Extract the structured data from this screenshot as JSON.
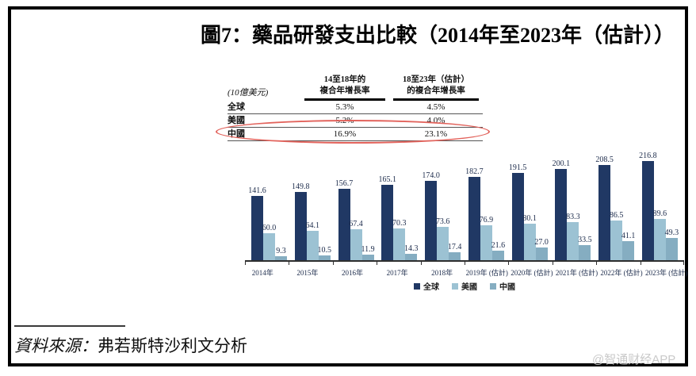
{
  "title": "圖7：藥品研發支出比較（2014年至2023年（估計））",
  "table": {
    "unit_label": "(10億美元)",
    "header_col2_line1": "14至18年的",
    "header_col2_line2": "複合年增長率",
    "header_col3_line1": "18至23年（估計）",
    "header_col3_line2": "的複合年增長率",
    "rows": [
      {
        "label": "全球",
        "v1": "5.3%",
        "v2": "4.5%"
      },
      {
        "label": "美國",
        "v1": "5.2%",
        "v2": "4.0%"
      },
      {
        "label": "中國",
        "v1": "16.9%",
        "v2": "23.1%"
      }
    ],
    "highlight_row": "中國",
    "highlight_color": "#E2635C"
  },
  "chart_data": {
    "type": "bar",
    "categories": [
      "2014年",
      "2015年",
      "2016年",
      "2017年",
      "2018年",
      "2019年 (估計)",
      "2020年 (估計)",
      "2021年 (估計)",
      "2022年 (估計)",
      "2023年 (估計)"
    ],
    "series": [
      {
        "name": "全球",
        "color": "#203864",
        "values": [
          141.6,
          149.8,
          156.7,
          165.1,
          174.0,
          182.7,
          191.5,
          200.1,
          208.5,
          216.8
        ]
      },
      {
        "name": "美國",
        "color": "#9CC2D3",
        "values": [
          60.0,
          64.1,
          67.4,
          70.3,
          73.6,
          76.9,
          80.1,
          83.3,
          86.5,
          89.6
        ]
      },
      {
        "name": "中國",
        "color": "#85ADC1",
        "values": [
          9.3,
          10.5,
          11.9,
          14.3,
          17.4,
          21.6,
          27.0,
          33.5,
          41.1,
          49.3
        ]
      }
    ],
    "ylim": [
      0,
      240
    ],
    "grid": false,
    "legend_position": "bottom",
    "value_labels": true
  },
  "source": {
    "label": "資料來源：",
    "text": "弗若斯特沙利文分析"
  },
  "watermark": "@智通财经APP",
  "colors": {
    "bar_global": "#203864",
    "bar_us": "#9CC2D3",
    "bar_china": "#85ADC1",
    "highlight_ellipse": "#E2635C",
    "axis": "#2e2e2e"
  }
}
